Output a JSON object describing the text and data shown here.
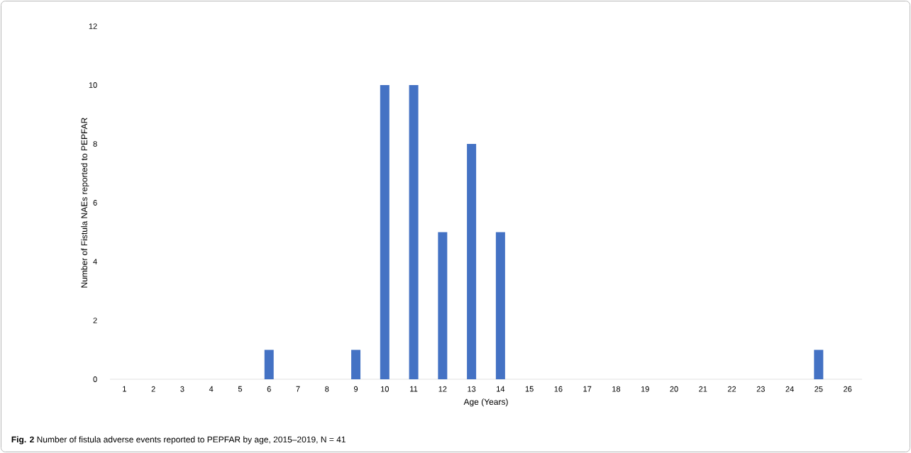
{
  "chart_data": {
    "type": "bar",
    "categories": [
      "1",
      "2",
      "3",
      "4",
      "5",
      "6",
      "7",
      "8",
      "9",
      "10",
      "11",
      "12",
      "13",
      "14",
      "15",
      "16",
      "17",
      "18",
      "19",
      "20",
      "21",
      "22",
      "23",
      "24",
      "25",
      "26"
    ],
    "values": [
      0,
      0,
      0,
      0,
      0,
      1,
      0,
      0,
      1,
      10,
      10,
      5,
      8,
      5,
      0,
      0,
      0,
      0,
      0,
      0,
      0,
      0,
      0,
      0,
      1,
      0
    ],
    "color": "#4472c4",
    "ylim": [
      0,
      12
    ],
    "yticks": [
      0,
      2,
      4,
      6,
      8,
      10,
      12
    ],
    "xlabel": "Age (Years)",
    "ylabel": "Number of Fistula NAEs reported to PEPFAR",
    "annotations": [
      "**Fig. 2** Number of fistula adverse events reported to PEPFAR by age, 2015–2019, N = 41"
    ]
  }
}
